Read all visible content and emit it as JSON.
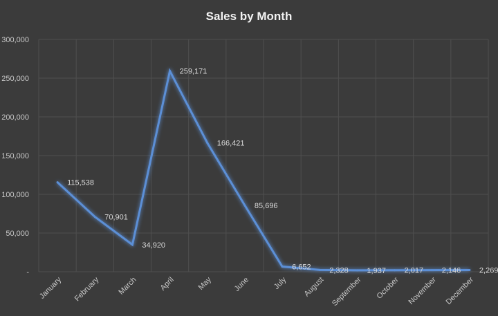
{
  "chart_data": {
    "type": "line",
    "title": "Sales by Month",
    "xlabel": "",
    "ylabel": "",
    "categories": [
      "January",
      "February",
      "March",
      "April",
      "May",
      "June",
      "July",
      "August",
      "September",
      "October",
      "November",
      "December"
    ],
    "series": [
      {
        "values": [
          115538,
          70901,
          34920,
          259171,
          166421,
          85696,
          6652,
          2328,
          1937,
          2017,
          2146,
          2269
        ],
        "data_labels": [
          "115,538",
          "70,901",
          "34,920",
          "259,171",
          "166,421",
          "85,696",
          "6,652",
          "2,328",
          "1,937",
          "2,017",
          "2,146",
          "2,269"
        ],
        "color": "#5b8fd6"
      }
    ],
    "ylim": [
      0,
      300000
    ],
    "y_ticks": [
      0,
      50000,
      100000,
      150000,
      200000,
      250000,
      300000
    ],
    "y_tick_labels": [
      "-",
      "50,000",
      "100,000",
      "150,000",
      "200,000",
      "250,000",
      "300,000"
    ],
    "grid": true,
    "legend": "none",
    "background": "#3b3b3b",
    "grid_color": "#4f4f4f"
  }
}
